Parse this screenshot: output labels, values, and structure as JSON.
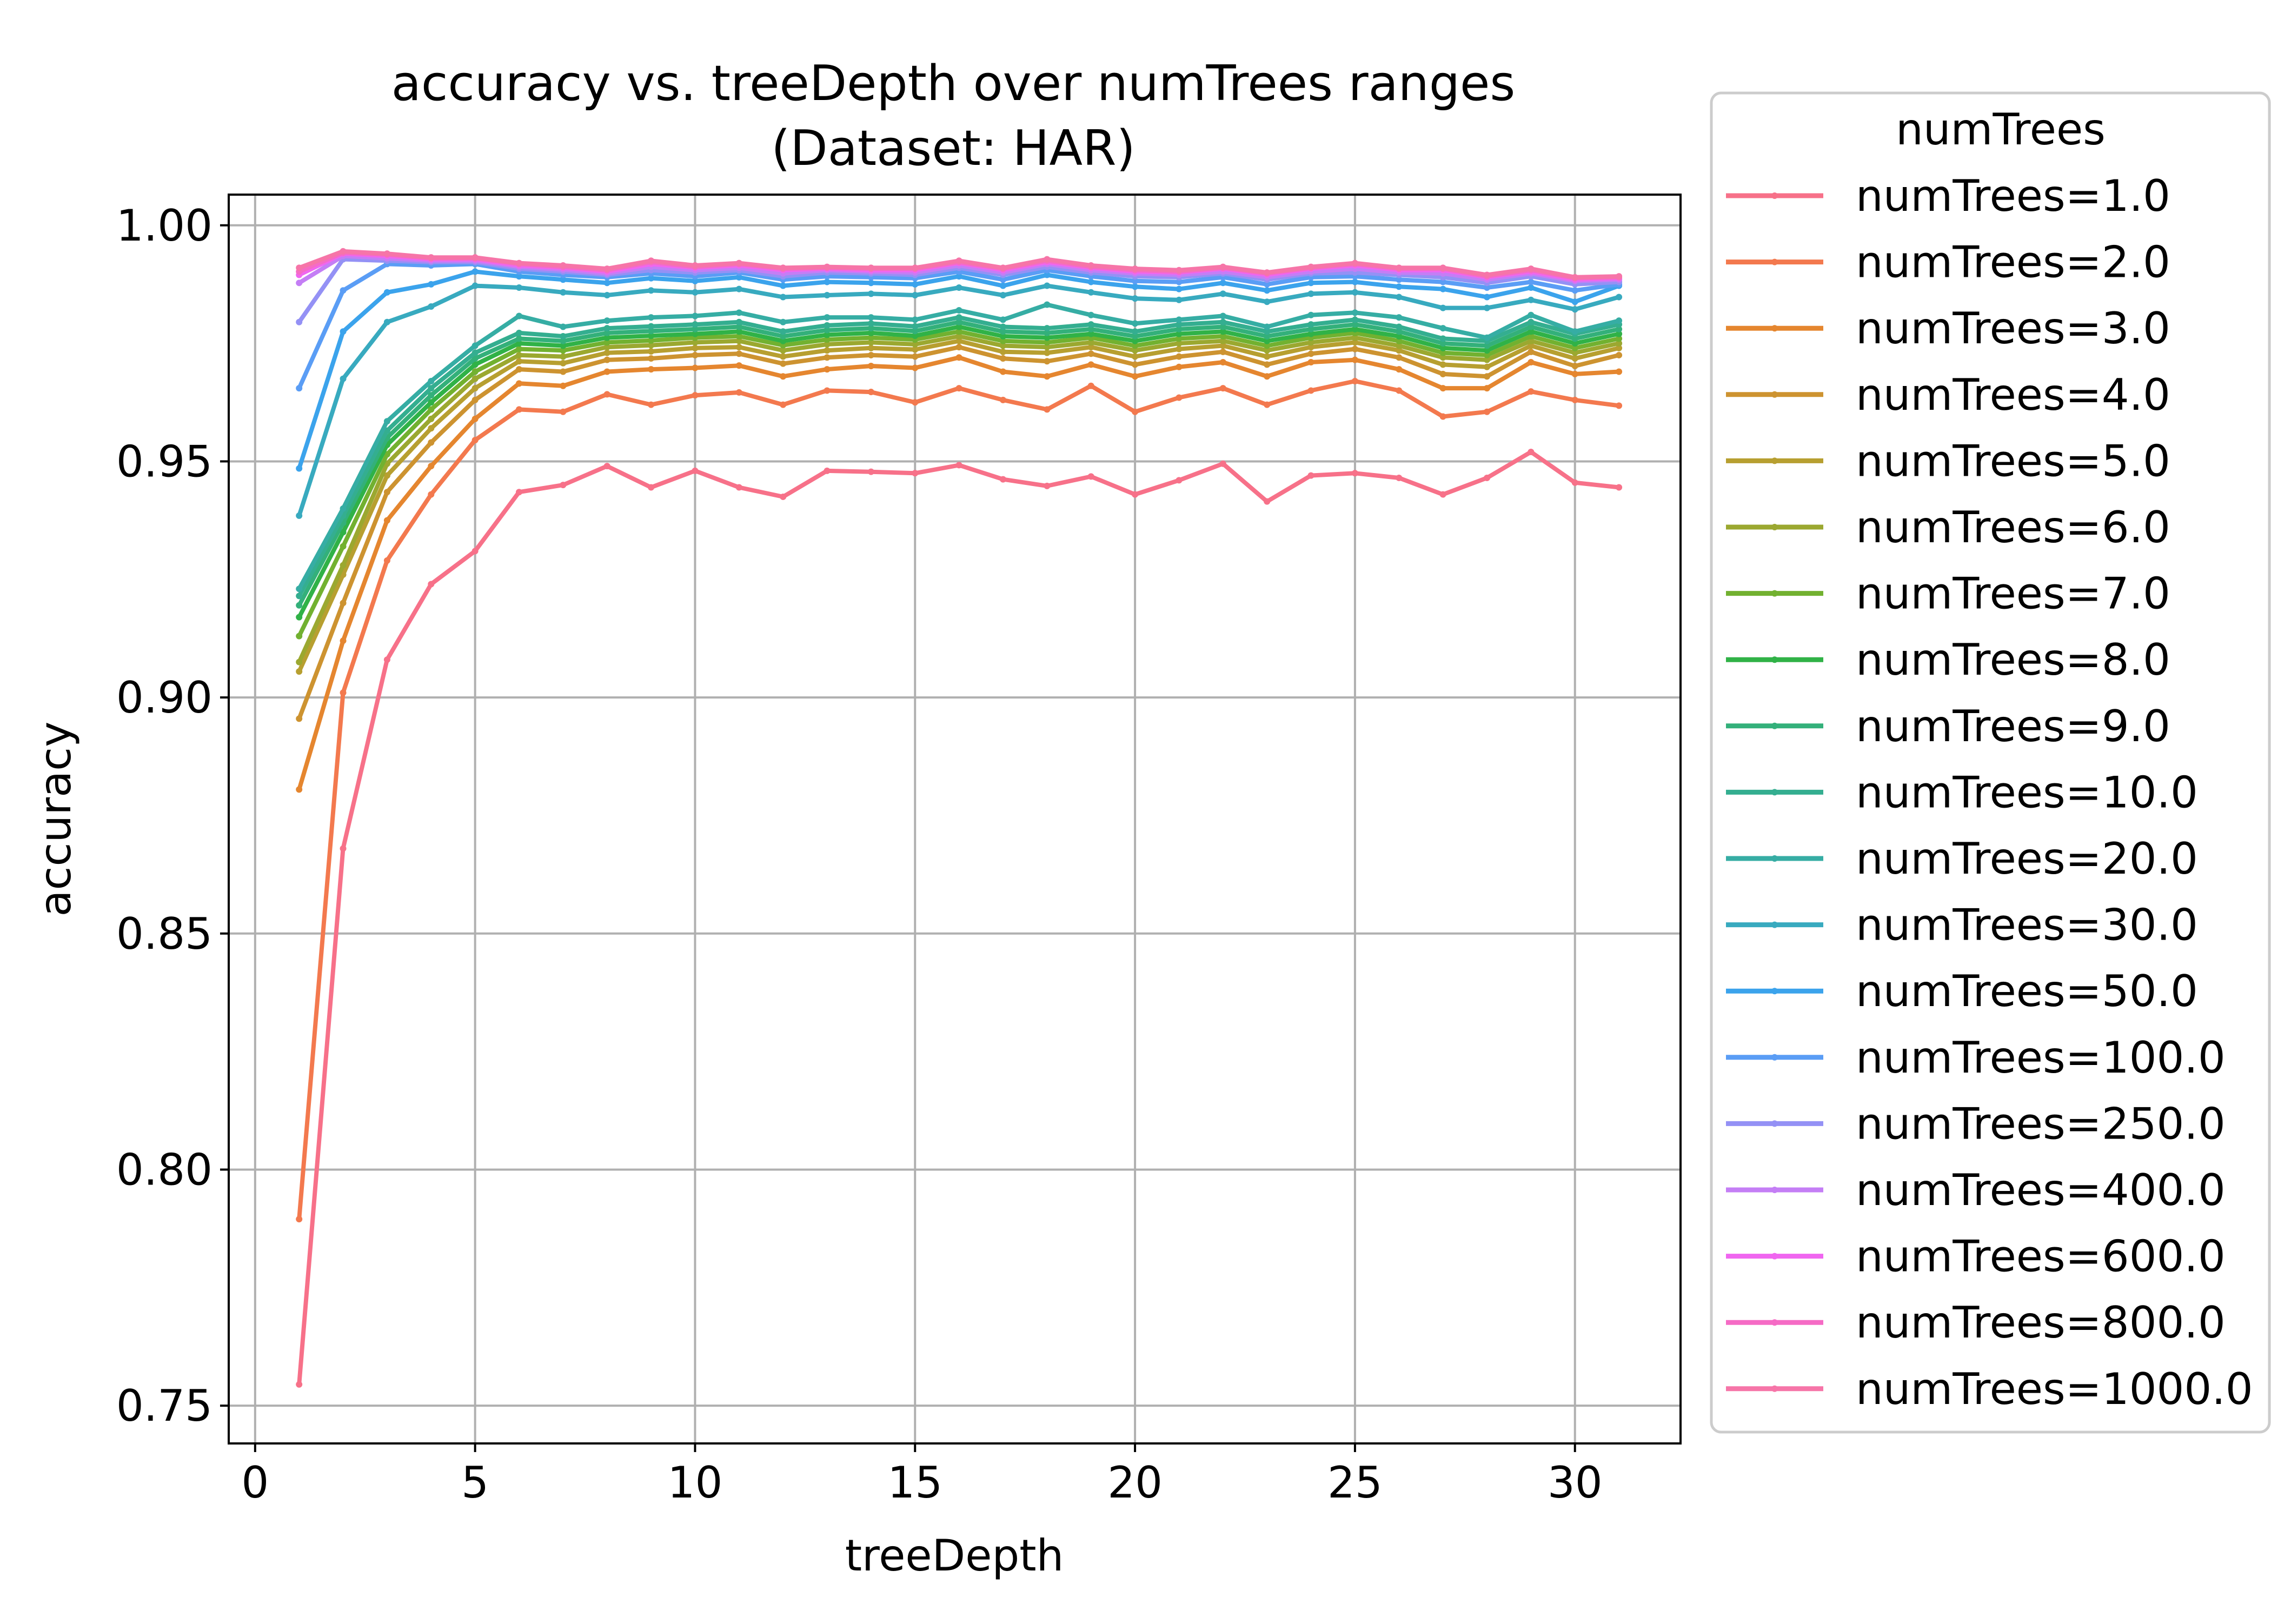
{
  "chart_data": {
    "type": "line",
    "title_line1": "accuracy vs. treeDepth over numTrees ranges",
    "title_line2": "(Dataset: HAR)",
    "xlabel": "treeDepth",
    "ylabel": "accuracy",
    "xlim": [
      -0.6,
      32.4
    ],
    "ylim": [
      0.742,
      1.0065
    ],
    "xticks": [
      0,
      5,
      10,
      15,
      20,
      25,
      30
    ],
    "xtick_labels": [
      "0",
      "5",
      "10",
      "15",
      "20",
      "25",
      "30"
    ],
    "yticks": [
      0.75,
      0.8,
      0.85,
      0.9,
      0.95,
      1.0
    ],
    "ytick_labels": [
      "0.75",
      "0.80",
      "0.85",
      "0.90",
      "0.95",
      "1.00"
    ],
    "grid": true,
    "legend": {
      "title": "numTrees",
      "placement": "outside-right"
    },
    "x": [
      1,
      2,
      3,
      4,
      5,
      6,
      7,
      8,
      9,
      10,
      11,
      12,
      13,
      14,
      15,
      16,
      17,
      18,
      19,
      20,
      21,
      22,
      23,
      24,
      25,
      26,
      27,
      28,
      29,
      30,
      31
    ],
    "series": [
      {
        "name": "numTrees=1.0",
        "color": "#f77189",
        "values": [
          0.7545,
          0.868,
          0.908,
          0.924,
          0.931,
          0.9435,
          0.945,
          0.949,
          0.9445,
          0.948,
          0.9445,
          0.9425,
          0.948,
          0.9478,
          0.9475,
          0.9492,
          0.9462,
          0.9448,
          0.9468,
          0.943,
          0.946,
          0.9495,
          0.9415,
          0.947,
          0.9475,
          0.9465,
          0.943,
          0.9465,
          0.952,
          0.9455,
          0.9445
        ]
      },
      {
        "name": "numTrees=2.0",
        "color": "#f3794e",
        "values": [
          0.7895,
          0.901,
          0.929,
          0.943,
          0.9545,
          0.961,
          0.9605,
          0.9642,
          0.962,
          0.964,
          0.9646,
          0.962,
          0.965,
          0.9647,
          0.9625,
          0.9655,
          0.963,
          0.961,
          0.966,
          0.9605,
          0.9635,
          0.9655,
          0.962,
          0.965,
          0.967,
          0.965,
          0.9595,
          0.9605,
          0.9648,
          0.963,
          0.9618
        ]
      },
      {
        "name": "numTrees=3.0",
        "color": "#e5862f",
        "values": [
          0.8805,
          0.912,
          0.9375,
          0.949,
          0.959,
          0.9665,
          0.966,
          0.969,
          0.9695,
          0.9698,
          0.9703,
          0.968,
          0.9695,
          0.9702,
          0.9698,
          0.972,
          0.969,
          0.968,
          0.9705,
          0.968,
          0.97,
          0.971,
          0.968,
          0.971,
          0.9715,
          0.9695,
          0.9655,
          0.9655,
          0.971,
          0.9685,
          0.969
        ]
      },
      {
        "name": "numTrees=4.0",
        "color": "#cd9330",
        "values": [
          0.8955,
          0.92,
          0.9435,
          0.954,
          0.963,
          0.9695,
          0.969,
          0.9715,
          0.9718,
          0.9725,
          0.9728,
          0.9707,
          0.972,
          0.9725,
          0.9722,
          0.9742,
          0.9718,
          0.9712,
          0.9728,
          0.9705,
          0.9722,
          0.9732,
          0.9705,
          0.9728,
          0.9738,
          0.972,
          0.9685,
          0.968,
          0.9732,
          0.9702,
          0.9725
        ]
      },
      {
        "name": "numTrees=5.0",
        "color": "#b79f30",
        "values": [
          0.9055,
          0.926,
          0.947,
          0.957,
          0.9655,
          0.9712,
          0.9708,
          0.973,
          0.9733,
          0.974,
          0.9742,
          0.9722,
          0.9735,
          0.974,
          0.9737,
          0.9755,
          0.9732,
          0.973,
          0.9742,
          0.9722,
          0.9738,
          0.9745,
          0.9722,
          0.9742,
          0.9752,
          0.9735,
          0.9705,
          0.97,
          0.9745,
          0.9718,
          0.974
        ]
      },
      {
        "name": "numTrees=6.0",
        "color": "#9ba830",
        "values": [
          0.9075,
          0.928,
          0.9495,
          0.959,
          0.9675,
          0.9725,
          0.9722,
          0.9742,
          0.9746,
          0.9752,
          0.9755,
          0.9735,
          0.9748,
          0.9752,
          0.9748,
          0.9765,
          0.9745,
          0.9742,
          0.9752,
          0.9735,
          0.975,
          0.9755,
          0.9735,
          0.9752,
          0.9762,
          0.9745,
          0.972,
          0.9715,
          0.9755,
          0.973,
          0.975
        ]
      },
      {
        "name": "numTrees=7.0",
        "color": "#72b130",
        "values": [
          0.913,
          0.932,
          0.9515,
          0.961,
          0.969,
          0.9738,
          0.9735,
          0.9752,
          0.9756,
          0.9762,
          0.9765,
          0.9746,
          0.9758,
          0.9762,
          0.9758,
          0.9775,
          0.9755,
          0.9752,
          0.9762,
          0.9745,
          0.976,
          0.9765,
          0.9745,
          0.9762,
          0.9772,
          0.9755,
          0.973,
          0.9725,
          0.9765,
          0.974,
          0.976
        ]
      },
      {
        "name": "numTrees=8.0",
        "color": "#30b247",
        "values": [
          0.917,
          0.935,
          0.9535,
          0.9625,
          0.9705,
          0.975,
          0.9745,
          0.9762,
          0.9766,
          0.977,
          0.9775,
          0.9755,
          0.9768,
          0.9772,
          0.9766,
          0.9785,
          0.9765,
          0.9762,
          0.977,
          0.9755,
          0.977,
          0.9775,
          0.9755,
          0.977,
          0.978,
          0.9765,
          0.974,
          0.9735,
          0.9775,
          0.975,
          0.977
        ]
      },
      {
        "name": "numTrees=9.0",
        "color": "#33b07a",
        "values": [
          0.9195,
          0.937,
          0.955,
          0.964,
          0.9718,
          0.976,
          0.9755,
          0.9772,
          0.9776,
          0.978,
          0.9785,
          0.9765,
          0.9778,
          0.9782,
          0.9776,
          0.9795,
          0.9775,
          0.9772,
          0.978,
          0.9765,
          0.978,
          0.9785,
          0.9765,
          0.978,
          0.979,
          0.9775,
          0.975,
          0.9745,
          0.9785,
          0.976,
          0.978
        ]
      },
      {
        "name": "numTrees=10.0",
        "color": "#34ae90",
        "values": [
          0.9215,
          0.9385,
          0.9565,
          0.9655,
          0.973,
          0.9772,
          0.9765,
          0.9782,
          0.9786,
          0.979,
          0.9795,
          0.9775,
          0.9788,
          0.9792,
          0.9786,
          0.9805,
          0.9785,
          0.9782,
          0.979,
          0.9775,
          0.979,
          0.9795,
          0.9775,
          0.979,
          0.98,
          0.9785,
          0.976,
          0.9755,
          0.9795,
          0.977,
          0.979
        ]
      },
      {
        "name": "numTrees=20.0",
        "color": "#36ada4",
        "values": [
          0.923,
          0.94,
          0.9585,
          0.967,
          0.9745,
          0.9808,
          0.9785,
          0.9798,
          0.9805,
          0.9808,
          0.9815,
          0.9795,
          0.9805,
          0.9805,
          0.98,
          0.982,
          0.98,
          0.9832,
          0.981,
          0.9792,
          0.98,
          0.9808,
          0.9785,
          0.981,
          0.9815,
          0.9805,
          0.9782,
          0.9762,
          0.981,
          0.9775,
          0.9798
        ]
      },
      {
        "name": "numTrees=30.0",
        "color": "#38aabf",
        "values": [
          0.9385,
          0.9675,
          0.9795,
          0.9828,
          0.9872,
          0.9868,
          0.9858,
          0.9852,
          0.9862,
          0.9858,
          0.9865,
          0.9848,
          0.9852,
          0.9855,
          0.9852,
          0.9868,
          0.9852,
          0.9872,
          0.9858,
          0.9845,
          0.9842,
          0.9855,
          0.9838,
          0.9855,
          0.9858,
          0.9848,
          0.9825,
          0.9825,
          0.9842,
          0.9822,
          0.9848
        ]
      },
      {
        "name": "numTrees=50.0",
        "color": "#3ba3ec",
        "values": [
          0.9485,
          0.9775,
          0.9858,
          0.9875,
          0.9902,
          0.9892,
          0.9885,
          0.9878,
          0.9888,
          0.9882,
          0.989,
          0.9872,
          0.988,
          0.9878,
          0.9875,
          0.9892,
          0.9872,
          0.9895,
          0.988,
          0.987,
          0.9865,
          0.9878,
          0.9862,
          0.9878,
          0.988,
          0.987,
          0.9865,
          0.9848,
          0.9868,
          0.9838,
          0.9872
        ]
      },
      {
        "name": "numTrees=100.0",
        "color": "#5a9df5",
        "values": [
          0.9655,
          0.9862,
          0.9918,
          0.9915,
          0.9918,
          0.9902,
          0.9895,
          0.989,
          0.9898,
          0.9892,
          0.99,
          0.9885,
          0.9892,
          0.989,
          0.9888,
          0.9902,
          0.9885,
          0.9905,
          0.9892,
          0.9882,
          0.988,
          0.989,
          0.9875,
          0.989,
          0.9892,
          0.9885,
          0.988,
          0.9868,
          0.988,
          0.9862,
          0.9875
        ]
      },
      {
        "name": "numTrees=250.0",
        "color": "#9491f5",
        "values": [
          0.9795,
          0.9928,
          0.9925,
          0.9922,
          0.9922,
          0.9908,
          0.9902,
          0.9895,
          0.9905,
          0.99,
          0.9905,
          0.9892,
          0.99,
          0.9898,
          0.9895,
          0.991,
          0.9895,
          0.9912,
          0.99,
          0.9892,
          0.989,
          0.9898,
          0.9885,
          0.9898,
          0.99,
          0.9895,
          0.989,
          0.9878,
          0.9892,
          0.9875,
          0.988
        ]
      },
      {
        "name": "numTrees=400.0",
        "color": "#c47ef5",
        "values": [
          0.9878,
          0.9935,
          0.993,
          0.9925,
          0.9925,
          0.9912,
          0.9906,
          0.9898,
          0.9912,
          0.9905,
          0.991,
          0.9898,
          0.9905,
          0.9902,
          0.99,
          0.9915,
          0.99,
          0.9918,
          0.9905,
          0.9898,
          0.9895,
          0.9902,
          0.989,
          0.9902,
          0.9908,
          0.99,
          0.9898,
          0.9885,
          0.9898,
          0.9882,
          0.9885
        ]
      },
      {
        "name": "numTrees=600.0",
        "color": "#f066f0",
        "values": [
          0.9895,
          0.994,
          0.9935,
          0.9928,
          0.9928,
          0.9915,
          0.991,
          0.9902,
          0.9918,
          0.991,
          0.9915,
          0.9905,
          0.9908,
          0.9905,
          0.9905,
          0.992,
          0.9905,
          0.9922,
          0.991,
          0.9902,
          0.99,
          0.9908,
          0.9895,
          0.9908,
          0.9915,
          0.9905,
          0.9905,
          0.989,
          0.9902,
          0.9885,
          0.9888
        ]
      },
      {
        "name": "numTrees=800.0",
        "color": "#f56bc5",
        "values": [
          0.9902,
          0.9942,
          0.9938,
          0.993,
          0.993,
          0.9918,
          0.9912,
          0.9905,
          0.9922,
          0.9912,
          0.9918,
          0.9908,
          0.991,
          0.9908,
          0.9908,
          0.9922,
          0.9908,
          0.9925,
          0.9912,
          0.9905,
          0.9902,
          0.991,
          0.9898,
          0.991,
          0.9918,
          0.9908,
          0.9908,
          0.9892,
          0.9905,
          0.9888,
          0.989
        ]
      },
      {
        "name": "numTrees=1000.0",
        "color": "#f675a8",
        "values": [
          0.991,
          0.9945,
          0.994,
          0.9932,
          0.9932,
          0.992,
          0.9915,
          0.9908,
          0.9925,
          0.9915,
          0.992,
          0.991,
          0.9912,
          0.991,
          0.991,
          0.9925,
          0.991,
          0.9928,
          0.9915,
          0.9908,
          0.9905,
          0.9912,
          0.99,
          0.9912,
          0.992,
          0.991,
          0.991,
          0.9895,
          0.9908,
          0.989,
          0.9892
        ]
      }
    ]
  }
}
